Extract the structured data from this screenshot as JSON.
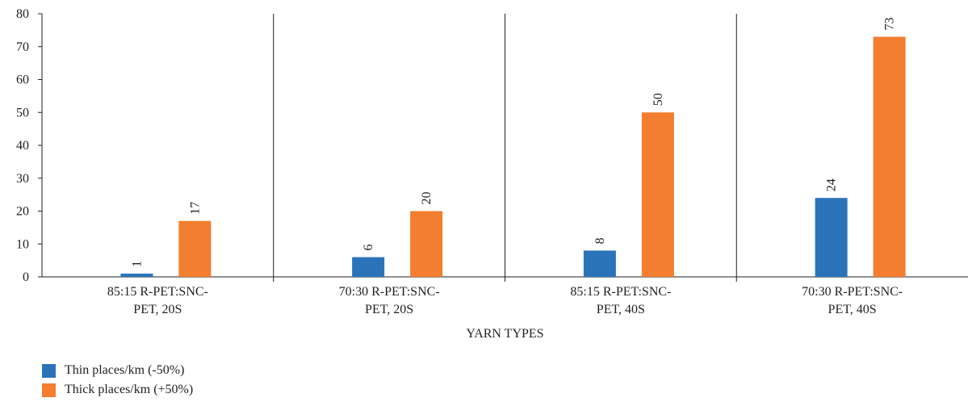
{
  "chart_data": {
    "type": "bar",
    "categories": [
      [
        "85:15 R-PET:SNC-",
        "PET, 20S"
      ],
      [
        "70:30 R-PET:SNC-",
        "PET, 20S"
      ],
      [
        "85:15 R-PET:SNC-",
        "PET, 40S"
      ],
      [
        "70:30 R-PET:SNC-",
        "PET, 40S"
      ]
    ],
    "series": [
      {
        "name": "Thin places/km (-50%)",
        "color": "#2b73b9",
        "values": [
          1,
          6,
          8,
          24
        ]
      },
      {
        "name": "Thick places/km (+50%)",
        "color": "#f37e2f",
        "values": [
          17,
          20,
          50,
          73
        ]
      }
    ],
    "xlabel": "YARN TYPES",
    "ylabel": "",
    "ylim": [
      0,
      80
    ],
    "yticks": [
      0,
      10,
      20,
      30,
      40,
      50,
      60,
      70,
      80
    ],
    "grid": false,
    "data_labels": true,
    "legend_position": "bottom-left"
  }
}
